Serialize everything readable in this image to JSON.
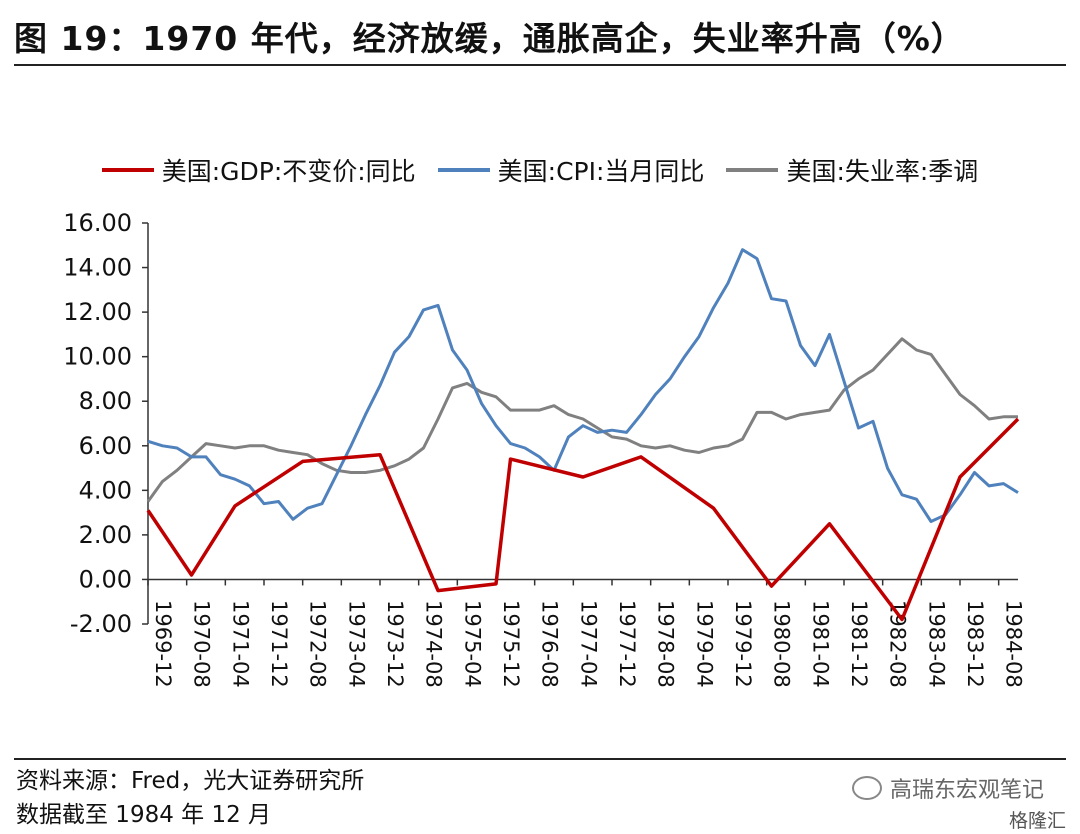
{
  "title": "图 19：1970 年代，经济放缓，通胀高企，失业率升高（%）",
  "source_line1": "资料来源：Fred，光大证券研究所",
  "source_line2": "数据截至 1984 年 12 月",
  "watermark": "高瑞东宏观笔记",
  "watermark_sub": "格隆汇",
  "chart_data": {
    "type": "line",
    "title": "",
    "xlabel": "",
    "ylabel": "",
    "ylim": [
      -2,
      16
    ],
    "yticks": [
      "16.00",
      "14.00",
      "12.00",
      "10.00",
      "8.00",
      "6.00",
      "4.00",
      "2.00",
      "0.00",
      "-2.00"
    ],
    "x_start": "1969-12",
    "x_end": "1984-12",
    "x_tick_labels": [
      "1969-12",
      "1970-08",
      "1971-04",
      "1971-12",
      "1972-08",
      "1973-04",
      "1973-12",
      "1974-08",
      "1975-04",
      "1975-12",
      "1976-08",
      "1977-04",
      "1977-12",
      "1978-08",
      "1979-04",
      "1979-12",
      "1980-08",
      "1981-04",
      "1981-12",
      "1982-08",
      "1983-04",
      "1983-12",
      "1984-08"
    ],
    "legend_position": "top",
    "grid": false,
    "series": [
      {
        "name": "美国:GDP:不变价:同比",
        "color": "#c00000",
        "points": [
          [
            "1969-12",
            3.1
          ],
          [
            "1970-09",
            0.2
          ],
          [
            "1971-06",
            3.3
          ],
          [
            "1972-08",
            5.3
          ],
          [
            "1973-12",
            5.6
          ],
          [
            "1974-12",
            -0.5
          ],
          [
            "1975-12",
            -0.2
          ],
          [
            "1976-03",
            5.4
          ],
          [
            "1977-06",
            4.6
          ],
          [
            "1978-06",
            5.5
          ],
          [
            "1979-09",
            3.2
          ],
          [
            "1980-09",
            -0.3
          ],
          [
            "1981-09",
            2.5
          ],
          [
            "1982-12",
            -1.8
          ],
          [
            "1983-12",
            4.6
          ],
          [
            "1984-12",
            7.2
          ]
        ]
      },
      {
        "name": "美国:CPI:当月同比",
        "color": "#4f81bd",
        "points": [
          [
            "1969-12",
            6.2
          ],
          [
            "1970-03",
            6.0
          ],
          [
            "1970-06",
            5.9
          ],
          [
            "1970-09",
            5.5
          ],
          [
            "1970-12",
            5.5
          ],
          [
            "1971-03",
            4.7
          ],
          [
            "1971-06",
            4.5
          ],
          [
            "1971-09",
            4.2
          ],
          [
            "1971-12",
            3.4
          ],
          [
            "1972-03",
            3.5
          ],
          [
            "1972-06",
            2.7
          ],
          [
            "1972-09",
            3.2
          ],
          [
            "1972-12",
            3.4
          ],
          [
            "1973-03",
            4.7
          ],
          [
            "1973-06",
            6.0
          ],
          [
            "1973-09",
            7.4
          ],
          [
            "1973-12",
            8.7
          ],
          [
            "1974-03",
            10.2
          ],
          [
            "1974-06",
            10.9
          ],
          [
            "1974-09",
            12.1
          ],
          [
            "1974-12",
            12.3
          ],
          [
            "1975-03",
            10.3
          ],
          [
            "1975-06",
            9.4
          ],
          [
            "1975-09",
            7.9
          ],
          [
            "1975-12",
            6.9
          ],
          [
            "1976-03",
            6.1
          ],
          [
            "1976-06",
            5.9
          ],
          [
            "1976-09",
            5.5
          ],
          [
            "1976-12",
            4.9
          ],
          [
            "1977-03",
            6.4
          ],
          [
            "1977-06",
            6.9
          ],
          [
            "1977-09",
            6.6
          ],
          [
            "1977-12",
            6.7
          ],
          [
            "1978-03",
            6.6
          ],
          [
            "1978-06",
            7.4
          ],
          [
            "1978-09",
            8.3
          ],
          [
            "1978-12",
            9.0
          ],
          [
            "1979-03",
            10.0
          ],
          [
            "1979-06",
            10.9
          ],
          [
            "1979-09",
            12.2
          ],
          [
            "1979-12",
            13.3
          ],
          [
            "1980-03",
            14.8
          ],
          [
            "1980-06",
            14.4
          ],
          [
            "1980-09",
            12.6
          ],
          [
            "1980-12",
            12.5
          ],
          [
            "1981-03",
            10.5
          ],
          [
            "1981-06",
            9.6
          ],
          [
            "1981-09",
            11.0
          ],
          [
            "1981-12",
            8.9
          ],
          [
            "1982-03",
            6.8
          ],
          [
            "1982-06",
            7.1
          ],
          [
            "1982-09",
            5.0
          ],
          [
            "1982-12",
            3.8
          ],
          [
            "1983-03",
            3.6
          ],
          [
            "1983-06",
            2.6
          ],
          [
            "1983-09",
            2.9
          ],
          [
            "1983-12",
            3.8
          ],
          [
            "1984-03",
            4.8
          ],
          [
            "1984-06",
            4.2
          ],
          [
            "1984-09",
            4.3
          ],
          [
            "1984-12",
            3.9
          ]
        ]
      },
      {
        "name": "美国:失业率:季调",
        "color": "#808080",
        "points": [
          [
            "1969-12",
            3.5
          ],
          [
            "1970-03",
            4.4
          ],
          [
            "1970-06",
            4.9
          ],
          [
            "1970-09",
            5.5
          ],
          [
            "1970-12",
            6.1
          ],
          [
            "1971-03",
            6.0
          ],
          [
            "1971-06",
            5.9
          ],
          [
            "1971-09",
            6.0
          ],
          [
            "1971-12",
            6.0
          ],
          [
            "1972-03",
            5.8
          ],
          [
            "1972-06",
            5.7
          ],
          [
            "1972-09",
            5.6
          ],
          [
            "1972-12",
            5.2
          ],
          [
            "1973-03",
            4.9
          ],
          [
            "1973-06",
            4.8
          ],
          [
            "1973-09",
            4.8
          ],
          [
            "1973-12",
            4.9
          ],
          [
            "1974-03",
            5.1
          ],
          [
            "1974-06",
            5.4
          ],
          [
            "1974-09",
            5.9
          ],
          [
            "1974-12",
            7.2
          ],
          [
            "1975-03",
            8.6
          ],
          [
            "1975-06",
            8.8
          ],
          [
            "1975-09",
            8.4
          ],
          [
            "1975-12",
            8.2
          ],
          [
            "1976-03",
            7.6
          ],
          [
            "1976-06",
            7.6
          ],
          [
            "1976-09",
            7.6
          ],
          [
            "1976-12",
            7.8
          ],
          [
            "1977-03",
            7.4
          ],
          [
            "1977-06",
            7.2
          ],
          [
            "1977-09",
            6.8
          ],
          [
            "1977-12",
            6.4
          ],
          [
            "1978-03",
            6.3
          ],
          [
            "1978-06",
            6.0
          ],
          [
            "1978-09",
            5.9
          ],
          [
            "1978-12",
            6.0
          ],
          [
            "1979-03",
            5.8
          ],
          [
            "1979-06",
            5.7
          ],
          [
            "1979-09",
            5.9
          ],
          [
            "1979-12",
            6.0
          ],
          [
            "1980-03",
            6.3
          ],
          [
            "1980-06",
            7.5
          ],
          [
            "1980-09",
            7.5
          ],
          [
            "1980-12",
            7.2
          ],
          [
            "1981-03",
            7.4
          ],
          [
            "1981-06",
            7.5
          ],
          [
            "1981-09",
            7.6
          ],
          [
            "1981-12",
            8.5
          ],
          [
            "1982-03",
            9.0
          ],
          [
            "1982-06",
            9.4
          ],
          [
            "1982-09",
            10.1
          ],
          [
            "1982-12",
            10.8
          ],
          [
            "1983-03",
            10.3
          ],
          [
            "1983-06",
            10.1
          ],
          [
            "1983-09",
            9.2
          ],
          [
            "1983-12",
            8.3
          ],
          [
            "1984-03",
            7.8
          ],
          [
            "1984-06",
            7.2
          ],
          [
            "1984-09",
            7.3
          ],
          [
            "1984-12",
            7.3
          ]
        ]
      }
    ]
  }
}
